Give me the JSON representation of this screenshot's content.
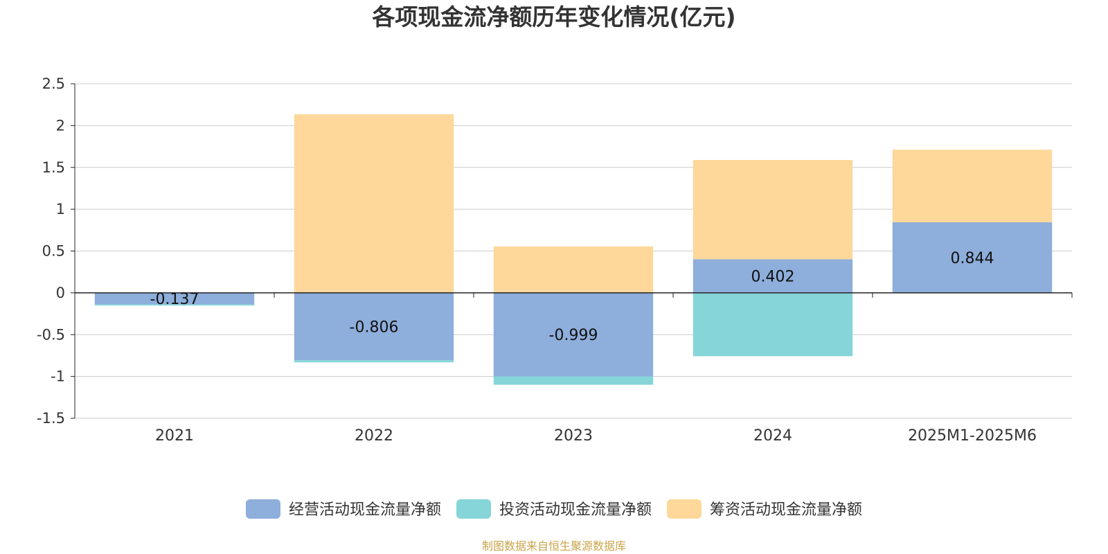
{
  "chart_data": {
    "type": "bar",
    "stacked": true,
    "title": "各项现金流净额历年变化情况(亿元)",
    "xlabel": "",
    "ylabel": "",
    "ylim": [
      -1.5,
      2.5
    ],
    "yticks": [
      2.5,
      2,
      1.5,
      1,
      0.5,
      0,
      -0.5,
      -1,
      -1.5
    ],
    "ytick_labels": [
      "2.5",
      "2",
      "1.5",
      "1",
      "0.5",
      "0",
      "-0.5",
      "-1",
      "-1.5"
    ],
    "grid": true,
    "categories": [
      "2021",
      "2022",
      "2023",
      "2024",
      "2025M1-2025M6"
    ],
    "series": [
      {
        "name": "经营活动现金流量净额",
        "color": "#8eaedb",
        "values": [
          -0.137,
          -0.806,
          -0.999,
          0.402,
          0.844
        ],
        "show_labels": true
      },
      {
        "name": "投资活动现金流量净额",
        "color": "#86d5d8",
        "values": [
          -0.015,
          -0.025,
          -0.1,
          -0.758,
          0.0
        ],
        "show_labels": false
      },
      {
        "name": "筹资活动现金流量净额",
        "color": "#fdd89a",
        "values": [
          0.0,
          2.135,
          0.555,
          1.187,
          0.868
        ],
        "show_labels": false
      }
    ],
    "data_labels": [
      "-0.137",
      "-0.806",
      "-0.999",
      "0.402",
      "0.844"
    ],
    "legend_position": "bottom-center"
  },
  "source_note": "制图数据来自恒生聚源数据库",
  "colors": {
    "title": "#333333",
    "axis": "#222222",
    "grid": "#cccccc",
    "source": "#c9a44a"
  }
}
